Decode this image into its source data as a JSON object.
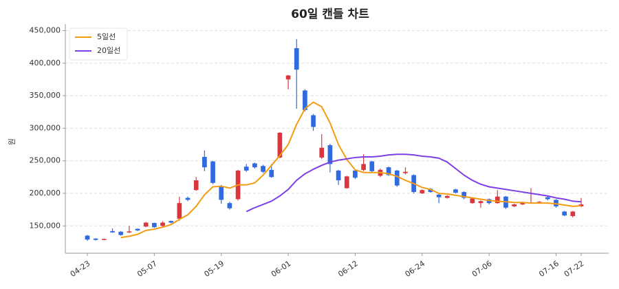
{
  "chart_data": {
    "type": "candlestick",
    "title": "60일 캔들 차트",
    "y_label": "원",
    "categories": [
      "04-23",
      null,
      null,
      null,
      null,
      null,
      null,
      null,
      "05-07",
      null,
      null,
      null,
      null,
      null,
      null,
      null,
      "05-19",
      null,
      null,
      null,
      null,
      null,
      null,
      null,
      "06-01",
      null,
      null,
      null,
      null,
      null,
      null,
      null,
      "06-12",
      null,
      null,
      null,
      null,
      null,
      null,
      null,
      "06-24",
      null,
      null,
      null,
      null,
      null,
      null,
      null,
      "07-06",
      null,
      null,
      null,
      null,
      null,
      null,
      null,
      "07-16",
      null,
      null,
      "07-22"
    ],
    "open": [
      135000,
      130500,
      128500,
      142000,
      141000,
      140000,
      145500,
      149000,
      154500,
      150000,
      157500,
      161000,
      193000,
      205000,
      256000,
      249000,
      210000,
      185000,
      191000,
      241000,
      246000,
      242000,
      236000,
      255000,
      375000,
      423000,
      358000,
      320000,
      255000,
      274000,
      235000,
      208000,
      235000,
      236000,
      249000,
      227000,
      240000,
      235000,
      231000,
      228000,
      200000,
      207000,
      198000,
      193000,
      206000,
      202000,
      185000,
      185000,
      191000,
      185000,
      195000,
      180000,
      183000,
      185000,
      185000,
      194000,
      190000,
      172000,
      165000,
      180000
    ],
    "high": [
      136000,
      131000,
      130500,
      146000,
      142000,
      150000,
      146000,
      156000,
      155000,
      157000,
      158000,
      195000,
      195000,
      225000,
      266000,
      250000,
      213000,
      187000,
      236000,
      245000,
      247000,
      244000,
      245000,
      294000,
      382000,
      437000,
      360000,
      322000,
      291000,
      276000,
      236000,
      227000,
      236000,
      260000,
      250000,
      238000,
      241000,
      236000,
      240000,
      229000,
      206000,
      208000,
      199000,
      197000,
      207000,
      203000,
      193000,
      189000,
      192000,
      205000,
      196000,
      184000,
      187000,
      208000,
      188000,
      195000,
      191000,
      173000,
      173000,
      193000
    ],
    "low": [
      127000,
      127500,
      128000,
      139500,
      135000,
      139000,
      142000,
      148000,
      147000,
      148000,
      154000,
      158000,
      188000,
      204000,
      234000,
      214000,
      184000,
      175000,
      189000,
      233000,
      238000,
      231000,
      224000,
      254000,
      360000,
      330000,
      326000,
      296000,
      253000,
      232000,
      213000,
      207000,
      222000,
      234000,
      232000,
      225000,
      227000,
      210000,
      229000,
      200000,
      199000,
      201000,
      185000,
      192000,
      200000,
      191000,
      184000,
      178000,
      183000,
      184000,
      176000,
      179000,
      182000,
      184000,
      184000,
      189000,
      178000,
      165000,
      163000,
      179000
    ],
    "close": [
      129000,
      128500,
      130000,
      140000,
      136000,
      141500,
      143000,
      155000,
      148000,
      155000,
      155000,
      185000,
      190000,
      220000,
      240000,
      216000,
      190000,
      177000,
      235000,
      235000,
      240000,
      233000,
      225000,
      293000,
      381000,
      390000,
      328000,
      302000,
      270000,
      245000,
      220000,
      226000,
      224000,
      245000,
      234000,
      236000,
      228000,
      212000,
      233000,
      202000,
      205000,
      202000,
      194000,
      196000,
      201000,
      193000,
      192000,
      188000,
      185000,
      195000,
      178000,
      183000,
      186000,
      186000,
      187000,
      191000,
      180000,
      166000,
      172000,
      183000
    ],
    "up_color": "#d9363e",
    "down_color": "#2f6ae0",
    "series": [
      {
        "name": "5일선",
        "color": "#f39c12",
        "values": [
          null,
          null,
          null,
          null,
          132000,
          134000,
          137000,
          143000,
          145000,
          148000,
          152000,
          160000,
          167000,
          180000,
          198000,
          210000,
          211000,
          208000,
          213000,
          213000,
          216000,
          228000,
          243000,
          258000,
          275000,
          306000,
          330000,
          340000,
          333000,
          308000,
          275000,
          252000,
          236000,
          232000,
          232000,
          232000,
          230000,
          226000,
          220000,
          215000,
          209000,
          206000,
          200000,
          199000,
          197000,
          195000,
          193000,
          191000,
          189000,
          188000,
          187000,
          186000,
          186000,
          185000,
          185000,
          185000,
          184000,
          182000,
          180000,
          181000
        ]
      },
      {
        "name": "20일선",
        "color": "#7b3fe4",
        "values": [
          null,
          null,
          null,
          null,
          null,
          null,
          null,
          null,
          null,
          null,
          null,
          null,
          null,
          null,
          null,
          null,
          null,
          null,
          null,
          172000,
          178000,
          183000,
          188000,
          196000,
          206000,
          220000,
          230000,
          237000,
          243000,
          248000,
          251000,
          253000,
          255000,
          256000,
          256000,
          257000,
          259000,
          260000,
          260000,
          259000,
          257000,
          256000,
          254000,
          248000,
          238000,
          228000,
          220000,
          214000,
          210000,
          208000,
          206000,
          204000,
          202000,
          200000,
          198000,
          196000,
          193000,
          191000,
          188000,
          187000
        ]
      }
    ],
    "ylim": [
      108000,
      460000
    ],
    "yticks": [
      {
        "value": 150000,
        "label": "150,000"
      },
      {
        "value": 200000,
        "label": "200,000"
      },
      {
        "value": 250000,
        "label": "250,000"
      },
      {
        "value": 300000,
        "label": "300,000"
      },
      {
        "value": 350000,
        "label": "350,000"
      },
      {
        "value": 400000,
        "label": "400,000"
      },
      {
        "value": 450000,
        "label": "450,000"
      }
    ],
    "grid": true,
    "legend": "upper-left"
  }
}
